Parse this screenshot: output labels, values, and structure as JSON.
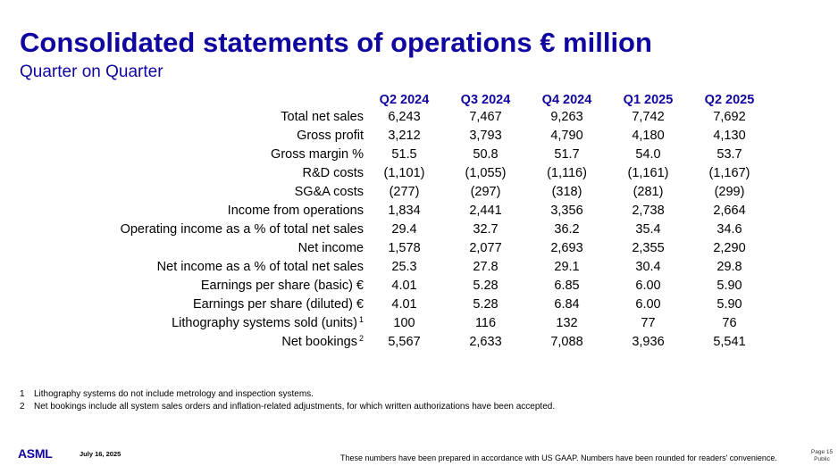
{
  "header": {
    "title": "Consolidated statements of operations € million",
    "subtitle": "Quarter on Quarter"
  },
  "table": {
    "columns": [
      "Q2 2024",
      "Q3 2024",
      "Q4 2024",
      "Q1 2025",
      "Q2 2025"
    ],
    "rows": [
      {
        "label": "Total net sales",
        "sup": "",
        "values": [
          "6,243",
          "7,467",
          "9,263",
          "7,742",
          "7,692"
        ]
      },
      {
        "label": "Gross profit",
        "sup": "",
        "values": [
          "3,212",
          "3,793",
          "4,790",
          "4,180",
          "4,130"
        ]
      },
      {
        "label": "Gross margin %",
        "sup": "",
        "values": [
          "51.5",
          "50.8",
          "51.7",
          "54.0",
          "53.7"
        ]
      },
      {
        "label": "R&D costs",
        "sup": "",
        "values": [
          "(1,101)",
          "(1,055)",
          "(1,116)",
          "(1,161)",
          "(1,167)"
        ]
      },
      {
        "label": "SG&A costs",
        "sup": "",
        "values": [
          "(277)",
          "(297)",
          "(318)",
          "(281)",
          "(299)"
        ]
      },
      {
        "label": "Income from operations",
        "sup": "",
        "values": [
          "1,834",
          "2,441",
          "3,356",
          "2,738",
          "2,664"
        ]
      },
      {
        "label": "Operating income as a % of total net sales",
        "sup": "",
        "values": [
          "29.4",
          "32.7",
          "36.2",
          "35.4",
          "34.6"
        ]
      },
      {
        "label": "Net income",
        "sup": "",
        "values": [
          "1,578",
          "2,077",
          "2,693",
          "2,355",
          "2,290"
        ]
      },
      {
        "label": "Net income as a % of total net sales",
        "sup": "",
        "values": [
          "25.3",
          "27.8",
          "29.1",
          "30.4",
          "29.8"
        ]
      },
      {
        "label": "Earnings per share (basic) €",
        "sup": "",
        "values": [
          "4.01",
          "5.28",
          "6.85",
          "6.00",
          "5.90"
        ]
      },
      {
        "label": "Earnings per share (diluted) €",
        "sup": "",
        "values": [
          "4.01",
          "5.28",
          "6.84",
          "6.00",
          "5.90"
        ]
      },
      {
        "label": "Lithography systems sold (units)",
        "sup": "1",
        "values": [
          "100",
          "116",
          "132",
          "77",
          "76"
        ]
      },
      {
        "label": "Net bookings",
        "sup": "2",
        "values": [
          "5,567",
          "2,633",
          "7,088",
          "3,936",
          "5,541"
        ]
      }
    ]
  },
  "footnotes": [
    {
      "num": "1",
      "text": "Lithography systems do not include metrology and inspection systems."
    },
    {
      "num": "2",
      "text": "Net bookings include all system sales orders and inflation-related adjustments, for which written authorizations have been accepted."
    }
  ],
  "footer": {
    "logo": "ASML",
    "date": "July 16, 2025",
    "disclaimer": "These numbers have been prepared in accordance with US GAAP.  Numbers have been rounded for readers' convenience.",
    "page": "Page 15",
    "classification": "Public"
  },
  "colors": {
    "accent": "#10069f"
  }
}
